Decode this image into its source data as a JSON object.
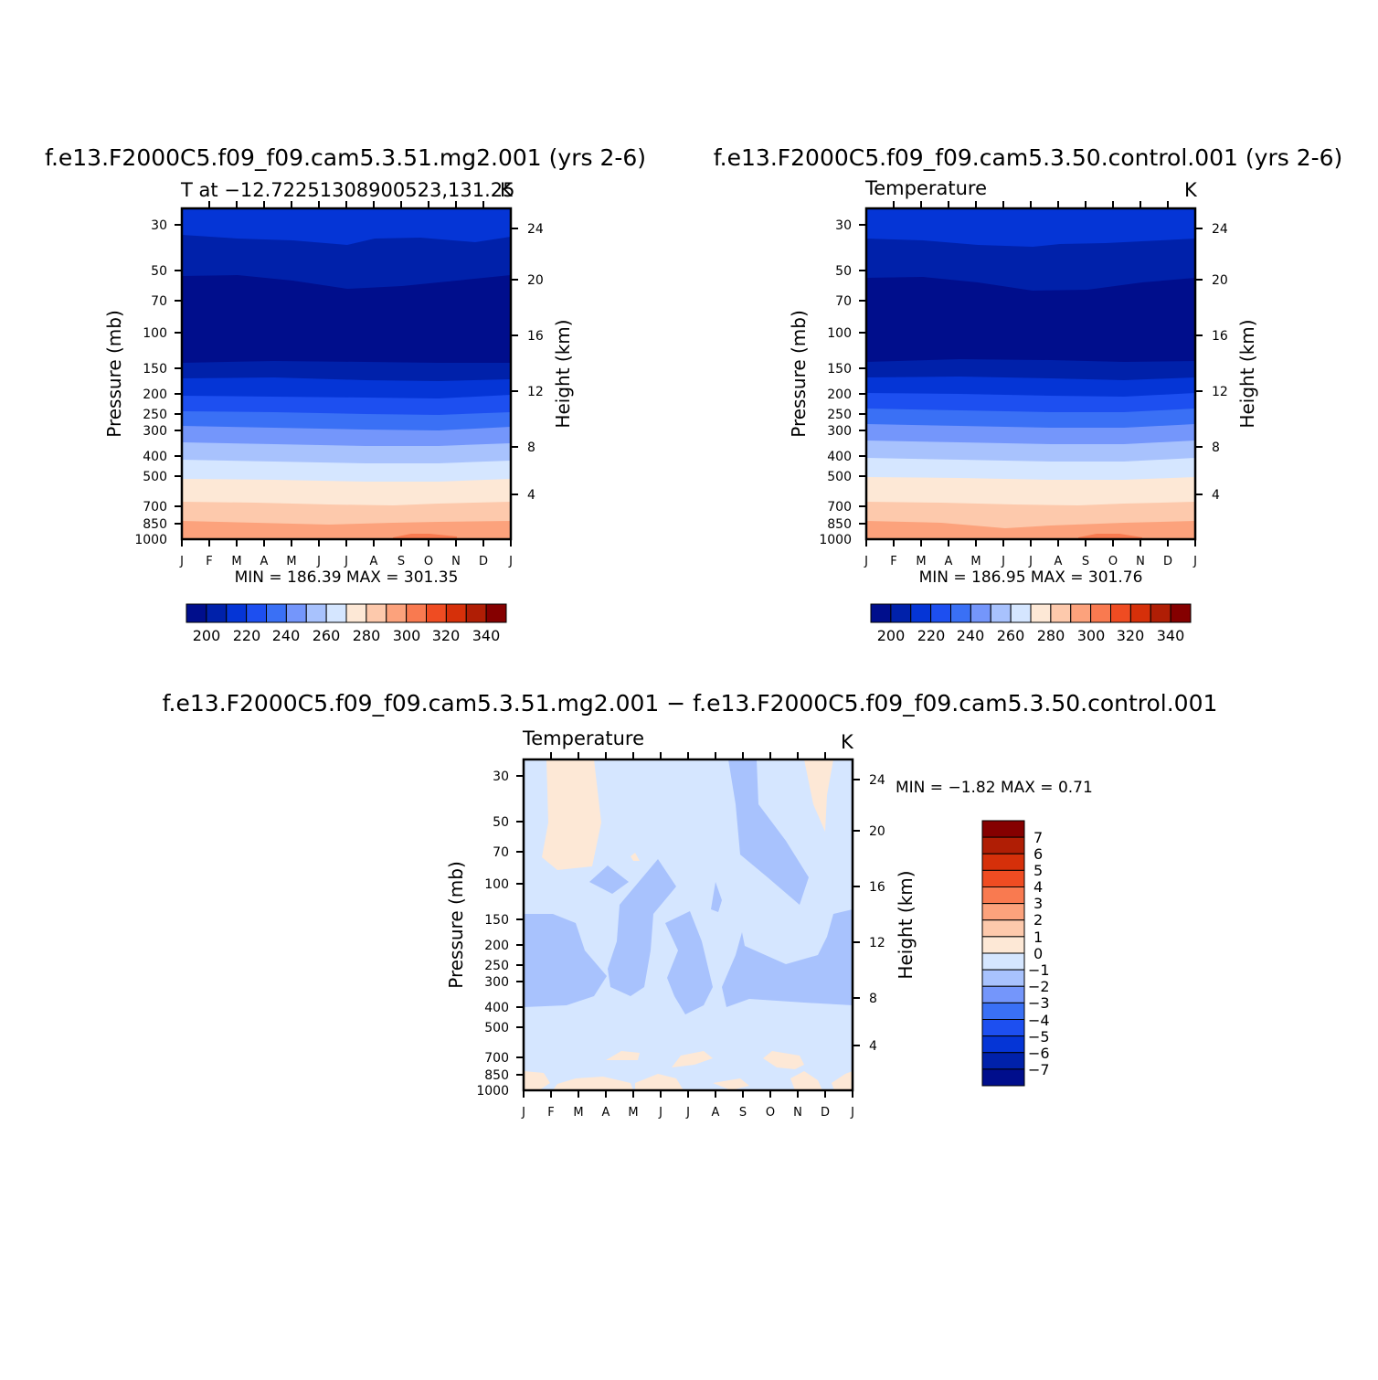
{
  "palette": {
    "abs": [
      "#000e8c",
      "#0021aa",
      "#0535d6",
      "#1d4ff0",
      "#3a70f5",
      "#7496fb",
      "#a8c2fd",
      "#d5e6ff",
      "#fde8d6",
      "#fdc9ac",
      "#fca27c",
      "#f97a50",
      "#ef4c22",
      "#d6300a",
      "#b01e05",
      "#850000"
    ],
    "diff": [
      "#000e8c",
      "#0021aa",
      "#0535d6",
      "#1d4ff0",
      "#3a70f5",
      "#7496fb",
      "#a8c2fd",
      "#d5e6ff",
      "#fde8d6",
      "#fdc9ac",
      "#fca27c",
      "#f97a50",
      "#ef4c22",
      "#d6300a",
      "#b01e05",
      "#850000"
    ]
  },
  "chart_data": [
    {
      "type": "contour",
      "title": "f.e13.F2000C5.f09_f09.cam5.3.51.mg2.001  (yrs 2-6)",
      "subtitle": "T at −12.72251308900523,131.25",
      "units": "K",
      "xlabel": "",
      "ylabel": "Pressure  (mb)",
      "ylabel_right": "Height  (km)",
      "x_ticks": [
        "J",
        "F",
        "M",
        "A",
        "M",
        "J",
        "J",
        "A",
        "S",
        "O",
        "N",
        "D",
        "J"
      ],
      "y_ticks": [
        "30",
        "50",
        "70",
        "100",
        "150",
        "200",
        "250",
        "300",
        "400",
        "500",
        "700",
        "850",
        "1000"
      ],
      "y_right_ticks": [
        "24",
        "20",
        "16",
        "12",
        "8",
        "4"
      ],
      "min_max_label": "MIN =  186.39  MAX =  301.35",
      "min": 186.39,
      "max": 301.35,
      "colorbar_labels": [
        "200",
        "220",
        "240",
        "260",
        "280",
        "300",
        "320",
        "340"
      ],
      "colorbar_levels": [
        190,
        200,
        210,
        220,
        230,
        240,
        250,
        260,
        270,
        280,
        290,
        300,
        310,
        320,
        330,
        340
      ],
      "levels_by_pressure": [
        {
          "pressure": 30,
          "temperature_range": [
            225,
            230
          ]
        },
        {
          "pressure": 50,
          "temperature_range": [
            205,
            215
          ]
        },
        {
          "pressure": 100,
          "temperature_range": [
            190,
            200
          ]
        },
        {
          "pressure": 150,
          "temperature_range": [
            200,
            210
          ]
        },
        {
          "pressure": 200,
          "temperature_range": [
            210,
            220
          ]
        },
        {
          "pressure": 300,
          "temperature_range": [
            230,
            240
          ]
        },
        {
          "pressure": 400,
          "temperature_range": [
            245,
            255
          ]
        },
        {
          "pressure": 500,
          "temperature_range": [
            260,
            270
          ]
        },
        {
          "pressure": 700,
          "temperature_range": [
            280,
            285
          ]
        },
        {
          "pressure": 850,
          "temperature_range": [
            290,
            295
          ]
        },
        {
          "pressure": 1000,
          "temperature_range": [
            295,
            301
          ]
        }
      ]
    },
    {
      "type": "contour",
      "title": "f.e13.F2000C5.f09_f09.cam5.3.50.control.001  (yrs 2-6)",
      "subtitle": "Temperature",
      "units": "K",
      "xlabel": "",
      "ylabel": "Pressure  (mb)",
      "ylabel_right": "Height  (km)",
      "x_ticks": [
        "J",
        "F",
        "M",
        "A",
        "M",
        "J",
        "J",
        "A",
        "S",
        "O",
        "N",
        "D",
        "J"
      ],
      "y_ticks": [
        "30",
        "50",
        "70",
        "100",
        "150",
        "200",
        "250",
        "300",
        "400",
        "500",
        "700",
        "850",
        "1000"
      ],
      "y_right_ticks": [
        "24",
        "20",
        "16",
        "12",
        "8",
        "4"
      ],
      "min_max_label": "MIN =  186.95  MAX =  301.76",
      "min": 186.95,
      "max": 301.76,
      "colorbar_labels": [
        "200",
        "220",
        "240",
        "260",
        "280",
        "300",
        "320",
        "340"
      ],
      "colorbar_levels": [
        190,
        200,
        210,
        220,
        230,
        240,
        250,
        260,
        270,
        280,
        290,
        300,
        310,
        320,
        330,
        340
      ]
    },
    {
      "type": "contour",
      "title": "f.e13.F2000C5.f09_f09.cam5.3.51.mg2.001  −  f.e13.F2000C5.f09_f09.cam5.3.50.control.001",
      "subtitle": "Temperature",
      "units": "K",
      "xlabel": "",
      "ylabel": "Pressure  (mb)",
      "ylabel_right": "Height  (km)",
      "x_ticks": [
        "J",
        "F",
        "M",
        "A",
        "M",
        "J",
        "J",
        "A",
        "S",
        "O",
        "N",
        "D",
        "J"
      ],
      "y_ticks": [
        "30",
        "50",
        "70",
        "100",
        "150",
        "200",
        "250",
        "300",
        "400",
        "500",
        "700",
        "850",
        "1000"
      ],
      "y_right_ticks": [
        "24",
        "20",
        "16",
        "12",
        "8",
        "4"
      ],
      "min_max_label": "MIN =   −1.82  MAX =     0.71",
      "min": -1.82,
      "max": 0.71,
      "colorbar_labels": [
        "7",
        "6",
        "5",
        "4",
        "3",
        "2",
        "1",
        "0",
        "−1",
        "−2",
        "−3",
        "−4",
        "−5",
        "−6",
        "−7"
      ],
      "colorbar_levels": [
        -7,
        -6,
        -5,
        -4,
        -3,
        -2,
        -1,
        0,
        1,
        2,
        3,
        4,
        5,
        6,
        7
      ]
    }
  ]
}
